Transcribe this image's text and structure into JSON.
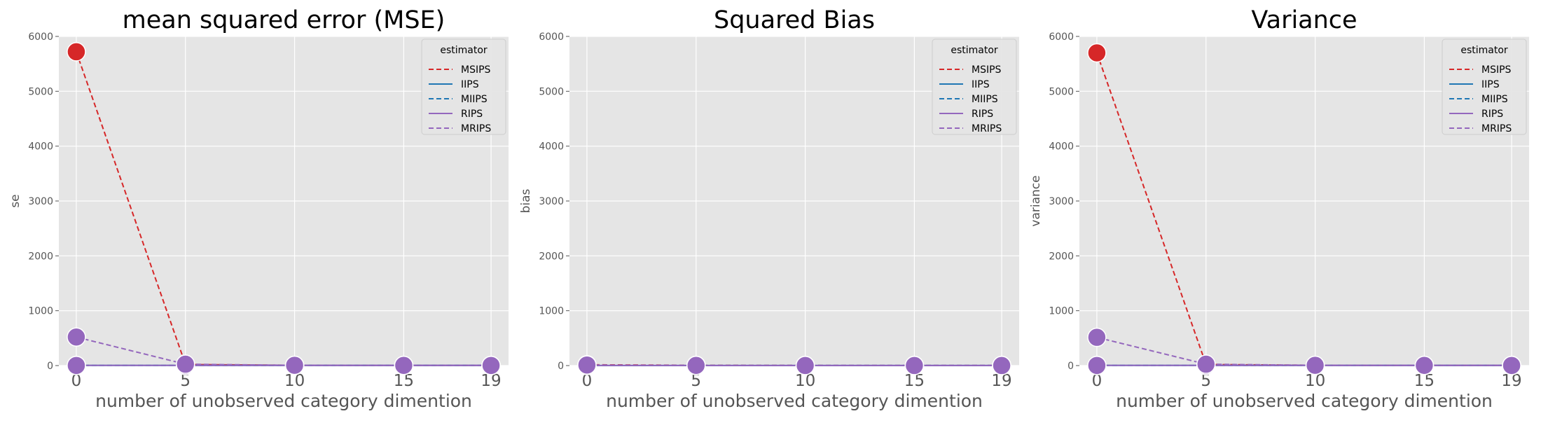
{
  "colors": {
    "panel_bg": "#e5e5e5",
    "grid": "#ffffff",
    "tick_text": "#555555",
    "title_text": "#000000",
    "MSIPS": "#d62728",
    "IIPS": "#1f77b4",
    "MIIPS": "#1f77b4",
    "RIPS": "#9467bd",
    "MRIPS": "#9467bd"
  },
  "chart_data": [
    {
      "type": "line",
      "title": "mean squared error (MSE)",
      "xlabel": "number of unobserved category dimention",
      "ylabel": "se",
      "x": [
        0,
        5,
        10,
        15,
        19
      ],
      "xticks": [
        "0",
        "5",
        "10",
        "15",
        "19"
      ],
      "ylim": [
        0,
        6000
      ],
      "yticks": [
        "0",
        "1000",
        "2000",
        "3000",
        "4000",
        "5000",
        "6000"
      ],
      "grid": true,
      "legend_title": "estimator",
      "legend_position": "top-right",
      "series": [
        {
          "name": "MSIPS",
          "style": "dashed",
          "values": [
            5720,
            20,
            5,
            3,
            2
          ]
        },
        {
          "name": "IIPS",
          "style": "solid",
          "values": [
            2,
            2,
            2,
            2,
            2
          ]
        },
        {
          "name": "MIIPS",
          "style": "dashed",
          "values": [
            2,
            2,
            2,
            2,
            2
          ]
        },
        {
          "name": "RIPS",
          "style": "solid",
          "values": [
            2,
            2,
            2,
            2,
            2
          ]
        },
        {
          "name": "MRIPS",
          "style": "dashed",
          "values": [
            520,
            25,
            5,
            3,
            2
          ]
        }
      ]
    },
    {
      "type": "line",
      "title": "Squared Bias",
      "xlabel": "number of unobserved category dimention",
      "ylabel": "bias",
      "x": [
        0,
        5,
        10,
        15,
        19
      ],
      "xticks": [
        "0",
        "5",
        "10",
        "15",
        "19"
      ],
      "ylim": [
        0,
        6000
      ],
      "yticks": [
        "0",
        "1000",
        "2000",
        "3000",
        "4000",
        "5000",
        "6000"
      ],
      "grid": true,
      "legend_title": "estimator",
      "legend_position": "top-right",
      "series": [
        {
          "name": "MSIPS",
          "style": "dashed",
          "values": [
            15,
            5,
            2,
            1,
            1
          ]
        },
        {
          "name": "IIPS",
          "style": "solid",
          "values": [
            1,
            1,
            1,
            1,
            1
          ]
        },
        {
          "name": "MIIPS",
          "style": "dashed",
          "values": [
            1,
            1,
            1,
            1,
            1
          ]
        },
        {
          "name": "RIPS",
          "style": "solid",
          "values": [
            1,
            1,
            1,
            1,
            1
          ]
        },
        {
          "name": "MRIPS",
          "style": "dashed",
          "values": [
            10,
            3,
            1,
            1,
            1
          ]
        }
      ]
    },
    {
      "type": "line",
      "title": "Variance",
      "xlabel": "number of unobserved category dimention",
      "ylabel": "variance",
      "x": [
        0,
        5,
        10,
        15,
        19
      ],
      "xticks": [
        "0",
        "5",
        "10",
        "15",
        "19"
      ],
      "ylim": [
        0,
        6000
      ],
      "yticks": [
        "0",
        "1000",
        "2000",
        "3000",
        "4000",
        "5000",
        "6000"
      ],
      "grid": true,
      "legend_title": "estimator",
      "legend_position": "top-right",
      "series": [
        {
          "name": "MSIPS",
          "style": "dashed",
          "values": [
            5700,
            20,
            5,
            3,
            2
          ]
        },
        {
          "name": "IIPS",
          "style": "solid",
          "values": [
            2,
            2,
            2,
            2,
            2
          ]
        },
        {
          "name": "MIIPS",
          "style": "dashed",
          "values": [
            2,
            2,
            2,
            2,
            2
          ]
        },
        {
          "name": "RIPS",
          "style": "solid",
          "values": [
            2,
            2,
            2,
            2,
            2
          ]
        },
        {
          "name": "MRIPS",
          "style": "dashed",
          "values": [
            515,
            25,
            5,
            3,
            2
          ]
        }
      ]
    }
  ]
}
